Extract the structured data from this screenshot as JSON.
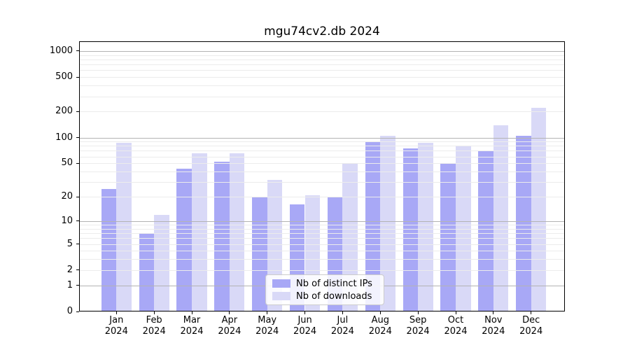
{
  "chart_data": {
    "type": "bar",
    "title": "mgu74cv2.db 2024",
    "categories": [
      "Jan",
      "Feb",
      "Mar",
      "Apr",
      "May",
      "Jun",
      "Jul",
      "Aug",
      "Sep",
      "Oct",
      "Nov",
      "Dec"
    ],
    "year_label": "2024",
    "series": [
      {
        "name": "Nb of distinct IPs",
        "color": "#a8a8f6",
        "values": [
          25,
          7,
          43,
          52,
          20,
          16,
          20,
          88,
          75,
          49,
          71,
          105
        ]
      },
      {
        "name": "Nb of downloads",
        "color": "#d9d9f7",
        "values": [
          87,
          12,
          66,
          65,
          32,
          21,
          50,
          105,
          87,
          80,
          140,
          220
        ]
      }
    ],
    "y_ticks": [
      0,
      1,
      2,
      5,
      10,
      20,
      50,
      100,
      200,
      500,
      1000
    ],
    "y_scale": "log1p",
    "ylim": [
      0,
      1250
    ],
    "grid": true,
    "legend_position": "lower center",
    "colors": {
      "major_grid": "#b3b3b3",
      "minor_grid": "#ececec",
      "axis": "#000000",
      "text": "#000000"
    }
  }
}
